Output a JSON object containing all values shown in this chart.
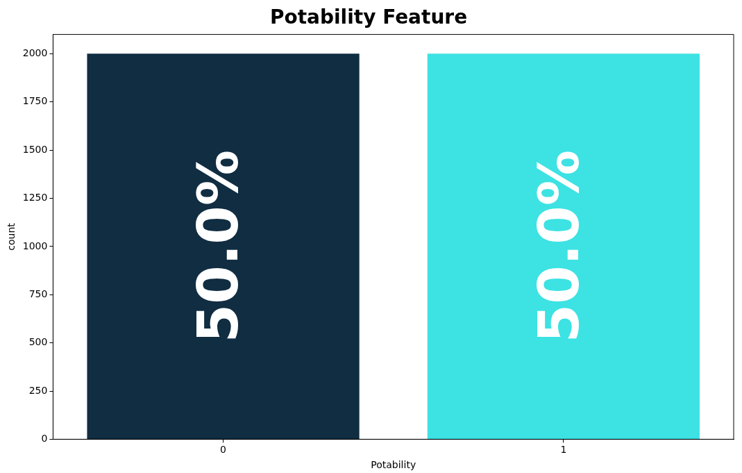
{
  "chart_data": {
    "type": "bar",
    "title": "Potability Feature",
    "xlabel": "Potability",
    "ylabel": "count",
    "categories": [
      "0",
      "1"
    ],
    "values": [
      2000,
      2000
    ],
    "colors": [
      "#102d42",
      "#3de2e3"
    ],
    "annotations": [
      "50.0%",
      "50.0%"
    ],
    "ylim": [
      0,
      2100
    ],
    "yticks": [
      0,
      250,
      500,
      750,
      1000,
      1250,
      1500,
      1750,
      2000
    ],
    "grid": false,
    "legend": false
  }
}
